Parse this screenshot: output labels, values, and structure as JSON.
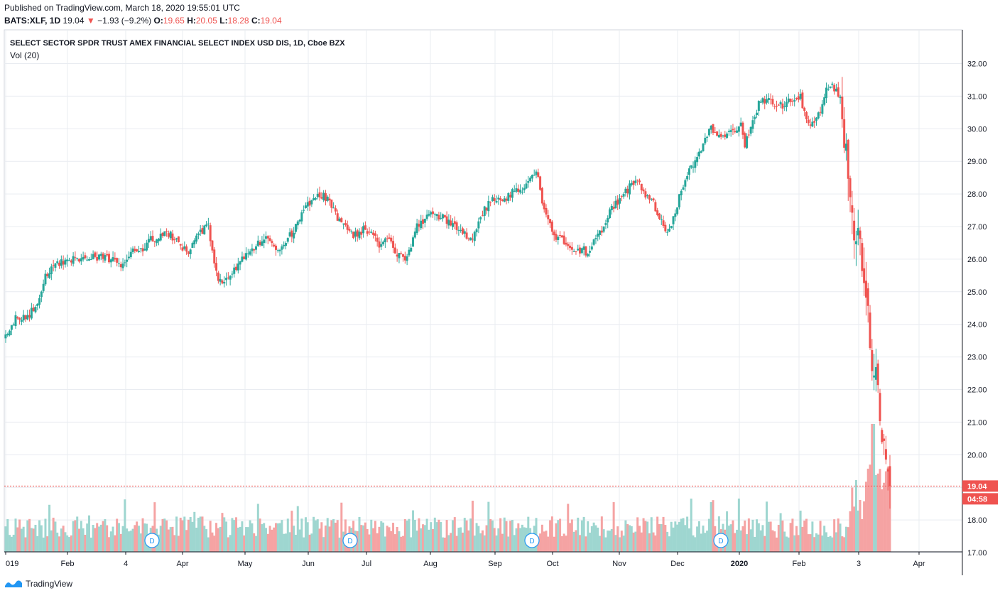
{
  "header": {
    "published": "Published on TradingView.com, March 18, 2020 19:55:01 UTC",
    "symbol": "BATS:XLF, 1D",
    "last": "19.04",
    "change": "−1.93 (−9.2%)",
    "o_label": "O:",
    "o_value": "19.65",
    "h_label": "H:",
    "h_value": "20.05",
    "l_label": "L:",
    "l_value": "18.28",
    "c_label": "C:",
    "c_value": "19.04"
  },
  "footer": {
    "brand": "TradingView"
  },
  "colors": {
    "up": "#26a69a",
    "down": "#ef5350",
    "upVol": "#9ed6d0",
    "downVol": "#f5a3a3",
    "grid": "#e9ecf1",
    "div": "#2196f3"
  },
  "chart_data": {
    "type": "candlestick",
    "title": "SELECT SECTOR SPDR TRUST AMEX FINANCIAL SELECT INDEX USD DIS, 1D, Cboe BZX",
    "volume_label": "Vol (20)",
    "y_ticks": [
      "17.00",
      "18.00",
      "19.00",
      "20.00",
      "21.00",
      "22.00",
      "23.00",
      "24.00",
      "25.00",
      "26.00",
      "27.00",
      "28.00",
      "29.00",
      "30.00",
      "31.00",
      "32.00"
    ],
    "ylim": [
      17,
      32.8
    ],
    "x_ticks": [
      "019",
      "Feb",
      "4",
      "Apr",
      "May",
      "Jun",
      "Jul",
      "Aug",
      "Sep",
      "Oct",
      "Nov",
      "Dec",
      "2020",
      "Feb",
      "3",
      "Apr"
    ],
    "x_tick_positions": [
      8,
      95,
      177,
      257,
      345,
      434,
      516,
      606,
      697,
      778,
      872,
      954,
      1041,
      1125,
      1209,
      1294
    ],
    "last_price": "19.04",
    "countdown": "04:58",
    "dividend_marker": "D",
    "dividend_positions": [
      214,
      493,
      749,
      1015
    ],
    "anchors": [
      [
        0,
        23.6
      ],
      [
        5,
        24.2
      ],
      [
        12,
        24.3
      ],
      [
        17,
        24.8
      ],
      [
        20,
        25.5
      ],
      [
        26,
        25.9
      ],
      [
        35,
        26.0
      ],
      [
        50,
        26.1
      ],
      [
        58,
        25.8
      ],
      [
        63,
        26.2
      ],
      [
        70,
        26.3
      ],
      [
        72,
        26.6
      ],
      [
        82,
        26.8
      ],
      [
        88,
        26.4
      ],
      [
        92,
        26.2
      ],
      [
        95,
        26.7
      ],
      [
        102,
        27.0
      ],
      [
        107,
        25.3
      ],
      [
        112,
        25.5
      ],
      [
        117,
        25.8
      ],
      [
        122,
        26.2
      ],
      [
        127,
        26.5
      ],
      [
        132,
        26.7
      ],
      [
        137,
        26.3
      ],
      [
        142,
        26.6
      ],
      [
        147,
        27.1
      ],
      [
        152,
        27.7
      ],
      [
        157,
        27.9
      ],
      [
        160,
        28.0
      ],
      [
        165,
        27.5
      ],
      [
        170,
        27.0
      ],
      [
        175,
        26.7
      ],
      [
        180,
        26.9
      ],
      [
        185,
        26.8
      ],
      [
        188,
        26.4
      ],
      [
        192,
        26.6
      ],
      [
        197,
        26.2
      ],
      [
        202,
        26.0
      ],
      [
        206,
        26.9
      ],
      [
        210,
        27.2
      ],
      [
        215,
        27.4
      ],
      [
        220,
        27.3
      ],
      [
        225,
        27.0
      ],
      [
        230,
        26.8
      ],
      [
        235,
        26.6
      ],
      [
        240,
        27.4
      ],
      [
        245,
        27.9
      ],
      [
        250,
        27.7
      ],
      [
        255,
        28.1
      ],
      [
        260,
        28.0
      ],
      [
        265,
        28.6
      ],
      [
        268,
        28.6
      ],
      [
        270,
        27.8
      ],
      [
        273,
        27.2
      ],
      [
        276,
        26.7
      ],
      [
        280,
        26.6
      ],
      [
        285,
        26.2
      ],
      [
        290,
        26.3
      ],
      [
        293,
        26.2
      ],
      [
        296,
        26.5
      ],
      [
        300,
        26.9
      ],
      [
        305,
        27.6
      ],
      [
        310,
        27.9
      ],
      [
        315,
        28.3
      ],
      [
        318,
        28.5
      ],
      [
        320,
        28.0
      ],
      [
        323,
        27.9
      ],
      [
        326,
        27.7
      ],
      [
        329,
        27.2
      ],
      [
        333,
        26.9
      ],
      [
        336,
        27.2
      ],
      [
        340,
        28.2
      ],
      [
        345,
        28.8
      ],
      [
        350,
        29.4
      ],
      [
        355,
        30.0
      ],
      [
        360,
        29.8
      ],
      [
        365,
        29.9
      ],
      [
        370,
        30.1
      ],
      [
        372,
        29.5
      ],
      [
        376,
        30.3
      ],
      [
        380,
        30.9
      ],
      [
        385,
        30.8
      ],
      [
        390,
        30.7
      ],
      [
        395,
        30.9
      ],
      [
        400,
        31.0
      ],
      [
        402,
        30.5
      ],
      [
        405,
        30.0
      ],
      [
        407,
        30.2
      ],
      [
        410,
        30.6
      ],
      [
        413,
        31.2
      ],
      [
        416,
        31.3
      ],
      [
        419,
        31.1
      ],
      [
        420,
        30.9
      ],
      [
        422,
        29.8
      ],
      [
        424,
        28.6
      ],
      [
        426,
        27.6
      ],
      [
        427,
        26.2
      ],
      [
        429,
        27.0
      ],
      [
        430,
        26.8
      ],
      [
        432,
        25.2
      ],
      [
        433,
        24.7
      ],
      [
        436,
        23.0
      ],
      [
        437,
        22.7
      ],
      [
        439,
        21.8
      ],
      [
        440,
        20.9
      ],
      [
        441,
        20.3
      ],
      [
        442,
        20.1
      ],
      [
        443,
        20.1
      ],
      [
        444,
        19.6
      ],
      [
        445,
        19.04
      ]
    ],
    "n_bars": 446,
    "x_start": 8,
    "x_end": 1253,
    "candle_width": 3,
    "seed": 20200318
  }
}
